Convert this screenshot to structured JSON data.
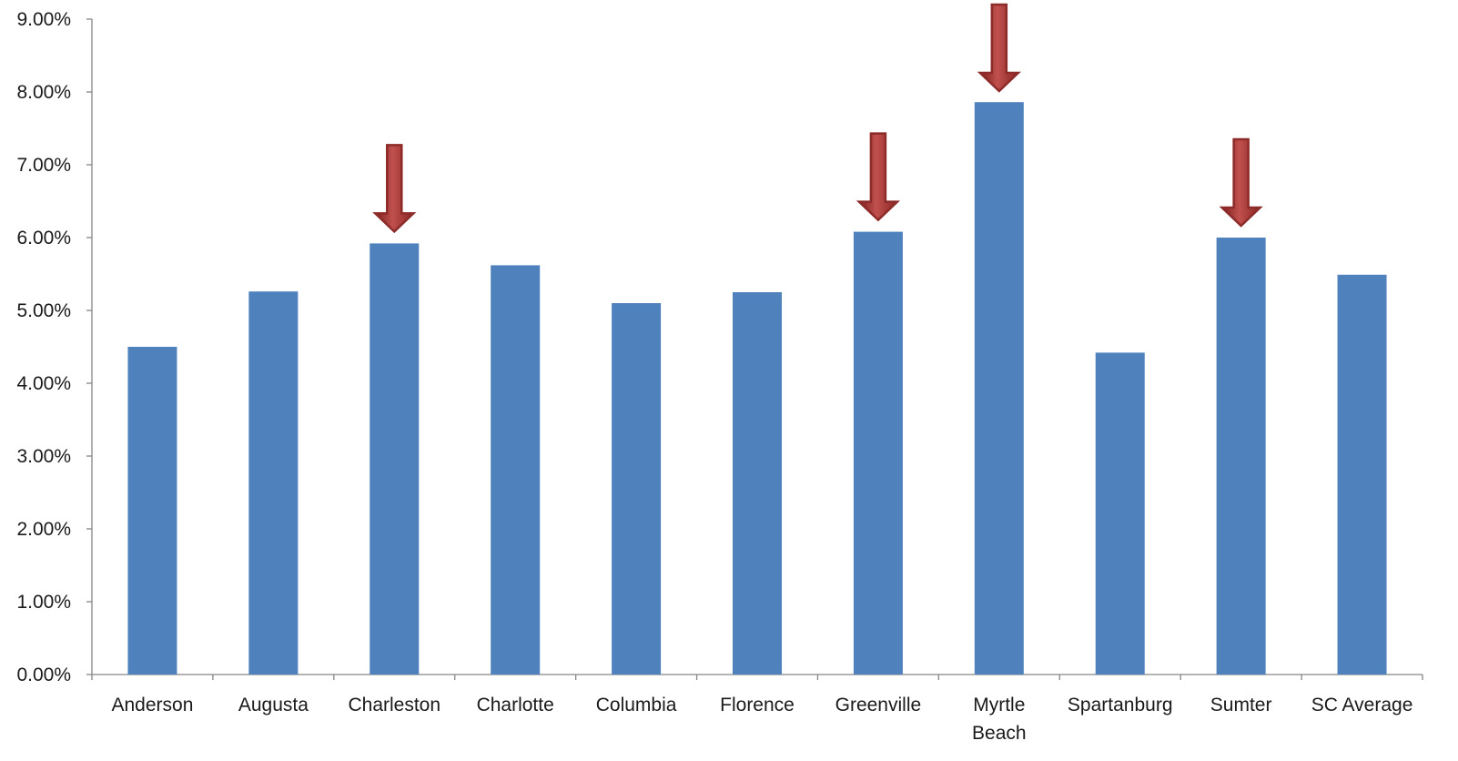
{
  "chart_data": {
    "type": "bar",
    "title": "",
    "xlabel": "",
    "ylabel": "",
    "categories": [
      "Anderson",
      "Augusta",
      "Charleston",
      "Charlotte",
      "Columbia",
      "Florence",
      "Greenville",
      "Myrtle Beach",
      "Spartanburg",
      "Sumter",
      "SC Average"
    ],
    "category_lines": [
      [
        "Anderson"
      ],
      [
        "Augusta"
      ],
      [
        "Charleston"
      ],
      [
        "Charlotte"
      ],
      [
        "Columbia"
      ],
      [
        "Florence"
      ],
      [
        "Greenville"
      ],
      [
        "Myrtle",
        "Beach"
      ],
      [
        "Spartanburg"
      ],
      [
        "Sumter"
      ],
      [
        "SC Average"
      ]
    ],
    "values": [
      4.5,
      5.26,
      5.92,
      5.62,
      5.1,
      5.25,
      6.08,
      7.86,
      4.42,
      6.0,
      5.49
    ],
    "ylim": [
      0,
      9
    ],
    "yticks": [
      0,
      1,
      2,
      3,
      4,
      5,
      6,
      7,
      8,
      9
    ],
    "ytick_labels": [
      "0.00%",
      "1.00%",
      "2.00%",
      "3.00%",
      "4.00%",
      "5.00%",
      "6.00%",
      "7.00%",
      "8.00%",
      "9.00%"
    ],
    "grid": false,
    "legend": "none",
    "bar_color": "#4f81bd",
    "annotations": {
      "type": "down-arrow",
      "color": "#c0504d",
      "targets": [
        "Charleston",
        "Greenville",
        "Myrtle Beach",
        "Sumter"
      ]
    }
  }
}
